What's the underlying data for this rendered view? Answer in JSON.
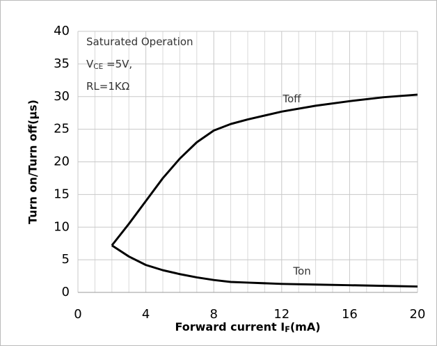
{
  "chart_data": {
    "type": "line",
    "xlabel": {
      "text": "Forward current I",
      "sub": "F",
      "after": "(mA)"
    },
    "ylabel": "Turn on/Turn off(µs)",
    "annotations": [
      {
        "text": "Saturated Operation"
      },
      {
        "text": "V",
        "sub": "CE",
        "after": " =5V,"
      },
      {
        "text": "RL=1KΩ"
      }
    ],
    "x": [
      2,
      3,
      4,
      5,
      6,
      7,
      8,
      9,
      10,
      12,
      14,
      16,
      18,
      20
    ],
    "series": [
      {
        "name": "Toff",
        "color": "#000000",
        "values": [
          7.2,
          10.5,
          14,
          17.5,
          20.5,
          23,
          24.8,
          25.8,
          26.5,
          27.7,
          28.6,
          29.3,
          29.9,
          30.3
        ]
      },
      {
        "name": "Ton",
        "color": "#000000",
        "values": [
          7.2,
          5.5,
          4.2,
          3.4,
          2.8,
          2.3,
          1.9,
          1.6,
          1.5,
          1.3,
          1.2,
          1.1,
          1.0,
          0.9
        ]
      }
    ],
    "xlim": [
      0,
      20
    ],
    "ylim": [
      0,
      40
    ],
    "xticks": [
      0,
      4,
      8,
      12,
      16,
      20
    ],
    "xminorticks": [
      1,
      2,
      3,
      5,
      6,
      7,
      9,
      10,
      11,
      13,
      14,
      15,
      17,
      18,
      19
    ],
    "yticks": [
      0,
      5,
      10,
      15,
      20,
      25,
      30,
      35,
      40
    ],
    "grid": true
  }
}
